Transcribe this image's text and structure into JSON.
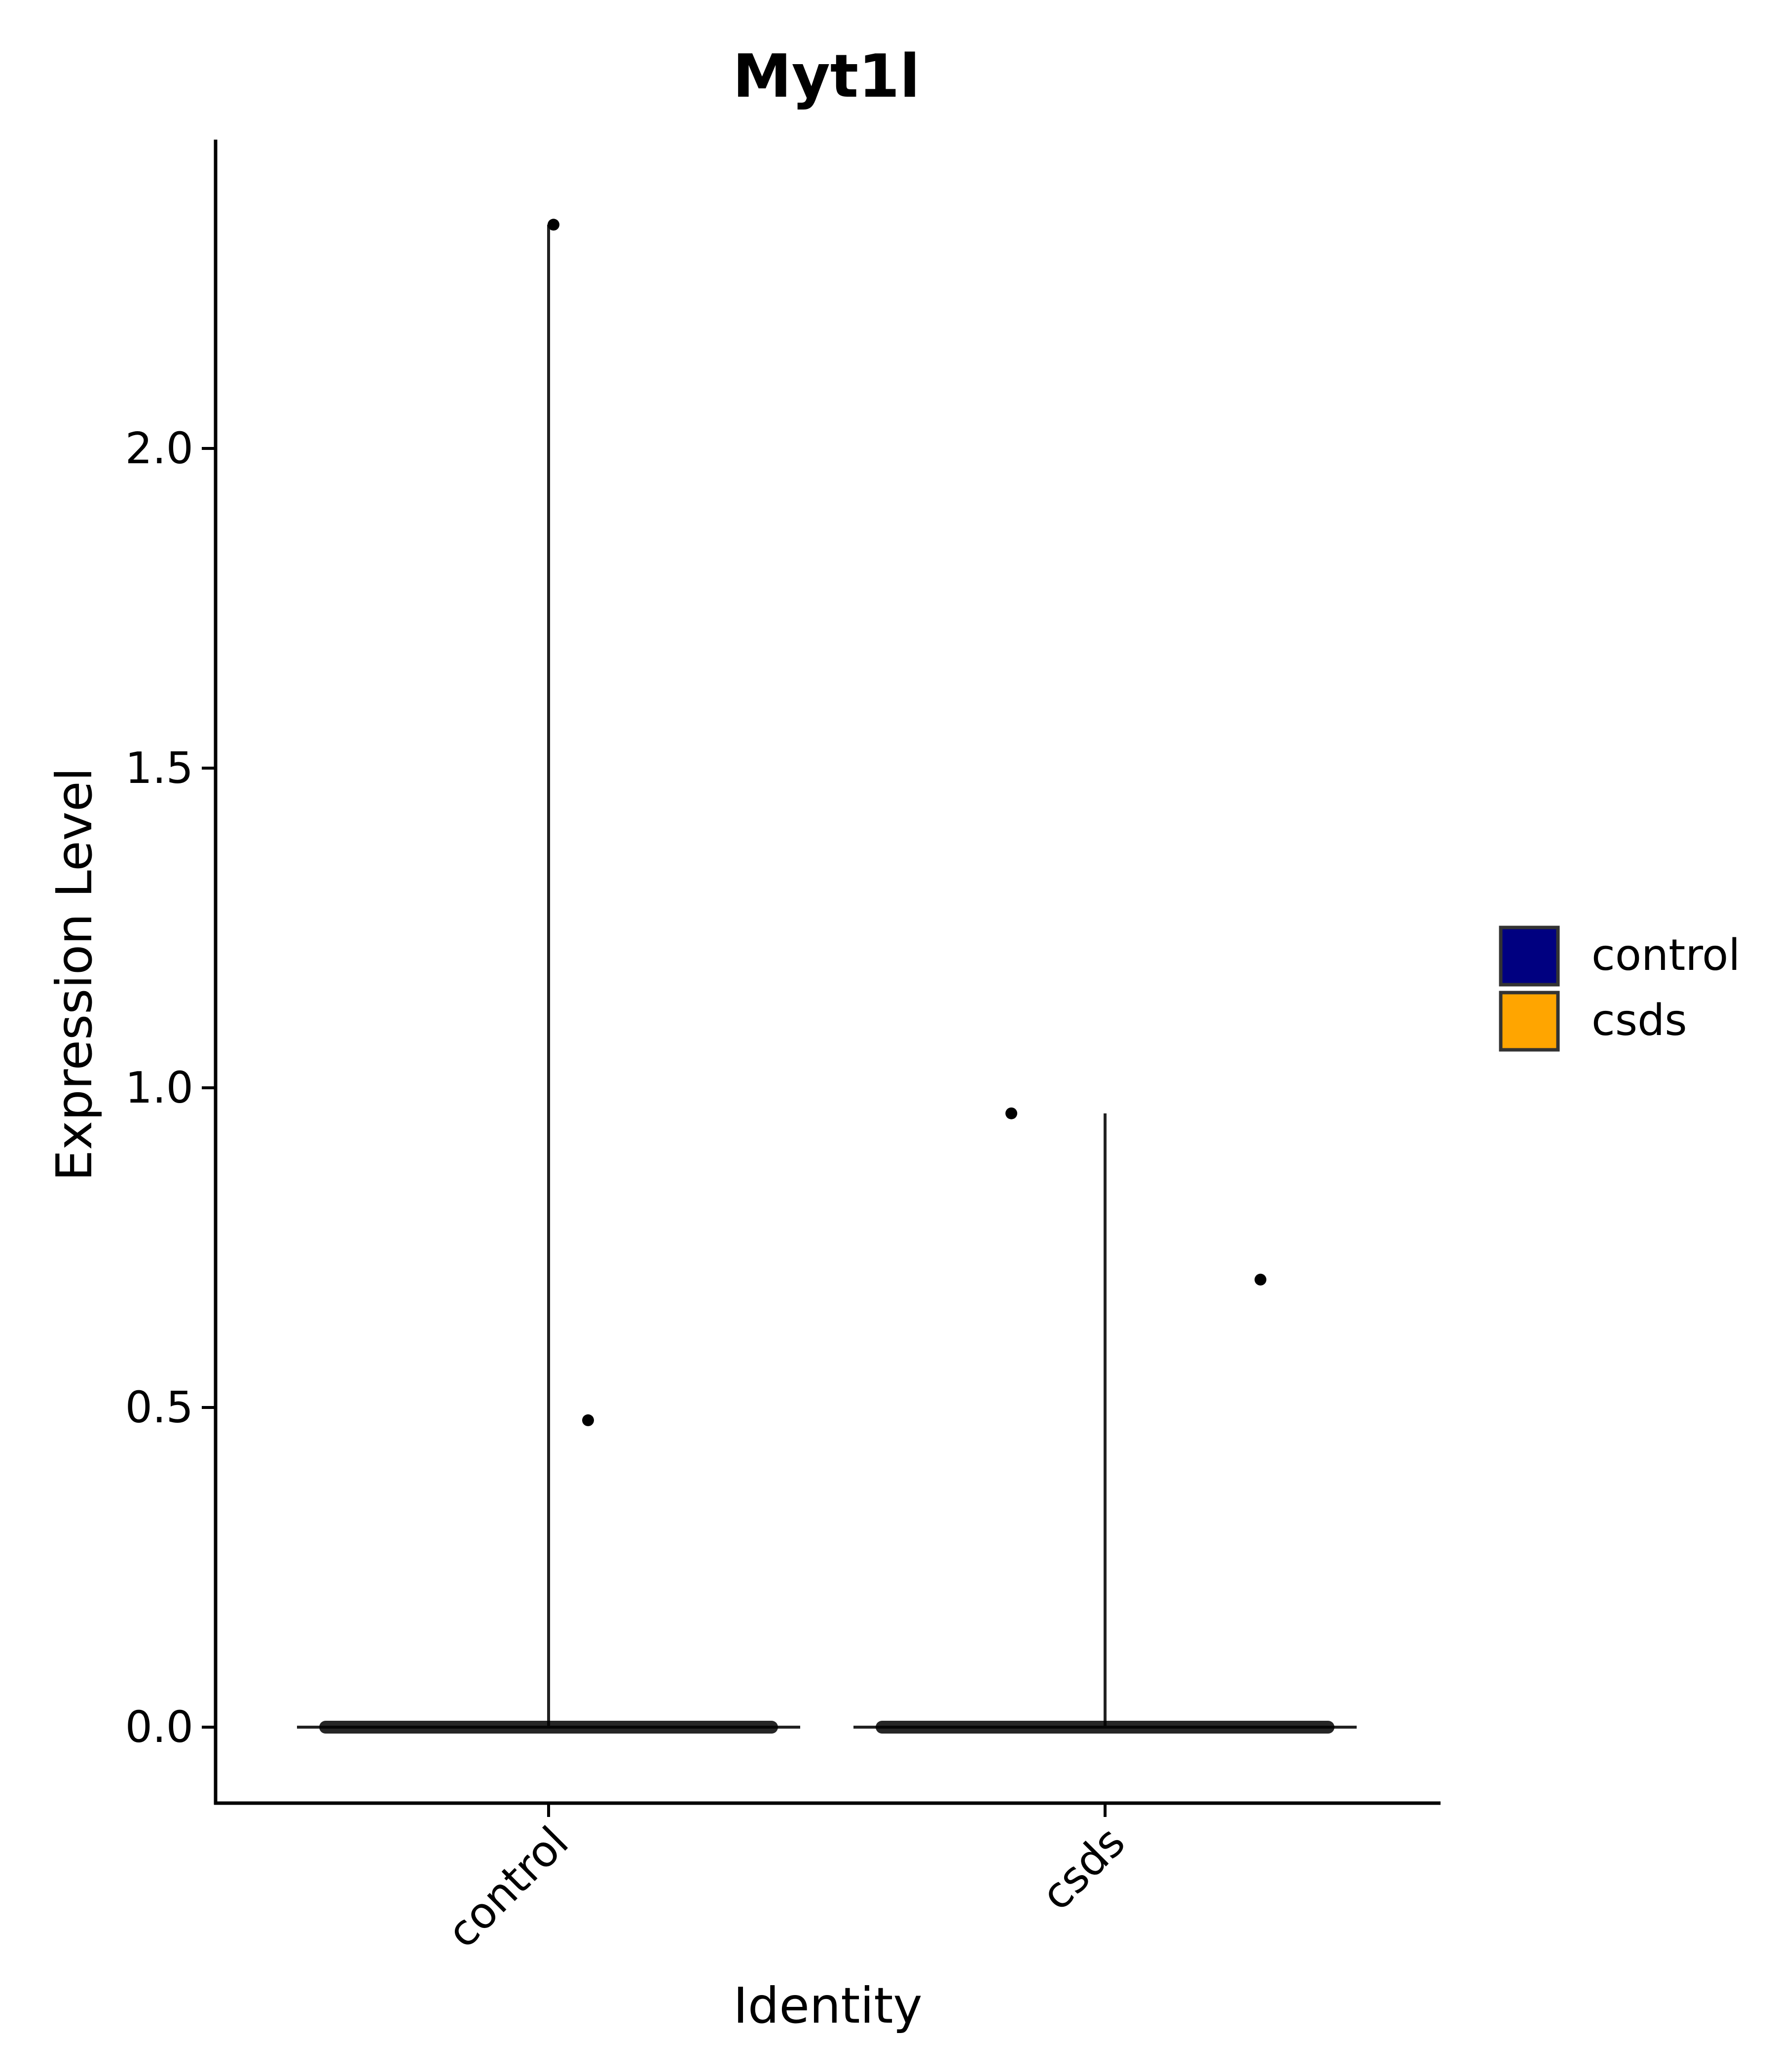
{
  "chart_data": {
    "type": "violin",
    "title": "Myt1l",
    "xlabel": "Identity",
    "ylabel": "Expression Level",
    "categories": [
      "control",
      "csds"
    ],
    "ylim": [
      -0.12,
      2.4
    ],
    "yticks": [
      0.0,
      0.5,
      1.0,
      1.5,
      2.0
    ],
    "ytick_labels": [
      "0.0",
      "0.5",
      "1.0",
      "1.5",
      "2.0"
    ],
    "series": [
      {
        "category": "control",
        "fill_color": "#000080",
        "violin_max": 2.35,
        "nonzero_points": [
          2.35,
          0.48
        ]
      },
      {
        "category": "csds",
        "fill_color": "#FFA500",
        "violin_max": 0.96,
        "nonzero_points": [
          0.96,
          0.7
        ]
      }
    ],
    "legend": {
      "position": "right",
      "entries": [
        {
          "label": "control",
          "color": "#000080"
        },
        {
          "label": "csds",
          "color": "#FFA500"
        }
      ]
    },
    "grid": false
  }
}
